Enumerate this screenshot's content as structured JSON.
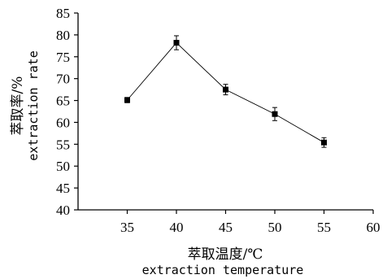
{
  "chart_data": {
    "type": "line",
    "x": [
      35,
      40,
      45,
      50,
      55
    ],
    "series": [
      {
        "values": [
          65.1,
          78.2,
          67.5,
          61.9,
          55.4
        ],
        "errors": [
          0.6,
          1.6,
          1.2,
          1.5,
          1.1
        ],
        "marker": "square",
        "color": "#000000"
      }
    ],
    "xlim": [
      30,
      60
    ],
    "ylim": [
      40,
      85
    ],
    "xticks": [
      "35",
      "40",
      "45",
      "50",
      "55",
      "60"
    ],
    "yticks": [
      "40",
      "45",
      "50",
      "55",
      "60",
      "65",
      "70",
      "75",
      "80",
      "85"
    ],
    "xlabel_cn": "萃取温度/℃",
    "xlabel_en": "extraction temperature",
    "ylabel_cn": "萃取率/%",
    "ylabel_en": "extraction rate",
    "grid": false
  }
}
